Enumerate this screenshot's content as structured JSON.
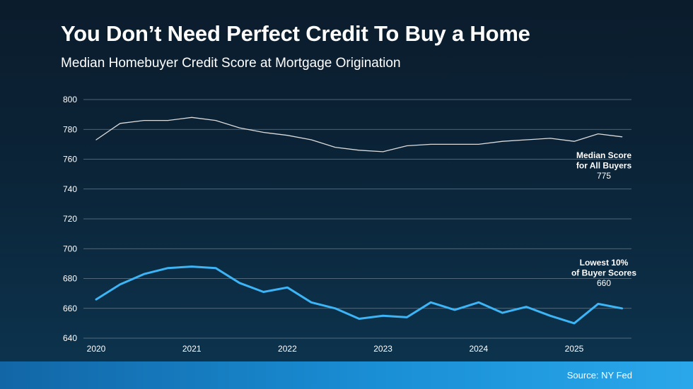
{
  "title": "You Don’t Need Perfect Credit To Buy a Home",
  "subtitle": "Median Homebuyer Credit Score at Mortgage Origination",
  "source": "Source: NY Fed",
  "colors": {
    "median_line": "#dcdcdc",
    "lowest_line": "#3db4f5",
    "grid": "#8a98a6",
    "footer_bar": "#1a8fd6"
  },
  "chart_data": {
    "type": "line",
    "title": "Median Homebuyer Credit Score at Mortgage Origination",
    "xlabel": "",
    "ylabel": "",
    "x_ticks": [
      "2020",
      "2021",
      "2022",
      "2023",
      "2024",
      "2025"
    ],
    "ylim": [
      640,
      800
    ],
    "y_ticks": [
      640,
      660,
      680,
      700,
      720,
      740,
      760,
      780,
      800
    ],
    "grid": true,
    "x": [
      "2020 Q1",
      "2020 Q2",
      "2020 Q3",
      "2020 Q4",
      "2021 Q1",
      "2021 Q2",
      "2021 Q3",
      "2021 Q4",
      "2022 Q1",
      "2022 Q2",
      "2022 Q3",
      "2022 Q4",
      "2023 Q1",
      "2023 Q2",
      "2023 Q3",
      "2023 Q4",
      "2024 Q1",
      "2024 Q2",
      "2024 Q3",
      "2024 Q4",
      "2025 Q1",
      "2025 Q2",
      "2025 Q3"
    ],
    "series": [
      {
        "name": "Median Score for All Buyers",
        "label_lines": [
          "Median Score",
          "for All Buyers",
          "775"
        ],
        "values": [
          773,
          784,
          786,
          786,
          788,
          786,
          781,
          778,
          776,
          773,
          768,
          766,
          765,
          769,
          770,
          770,
          770,
          772,
          773,
          774,
          772,
          777,
          775
        ]
      },
      {
        "name": "Lowest 10% of Buyer Scores",
        "label_lines": [
          "Lowest 10%",
          "of Buyer Scores",
          "660"
        ],
        "values": [
          666,
          676,
          683,
          687,
          688,
          687,
          677,
          671,
          674,
          664,
          660,
          653,
          655,
          654,
          664,
          659,
          664,
          657,
          661,
          655,
          650,
          663,
          660
        ]
      }
    ]
  }
}
